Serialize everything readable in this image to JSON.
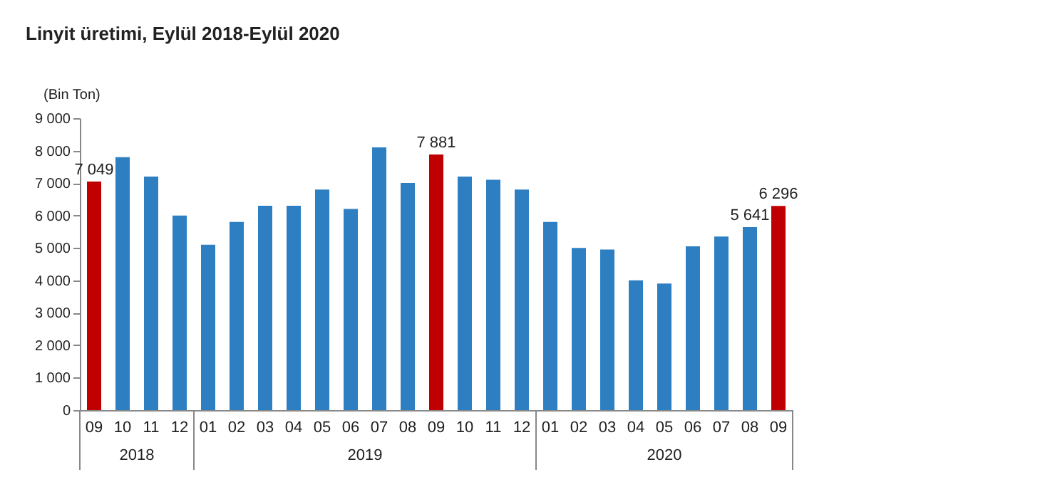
{
  "chart_data": {
    "type": "bar",
    "title": "Linyit üretimi, Eylül 2018-Eylül 2020",
    "ylabel": "(Bin Ton)",
    "categories": [
      "09",
      "10",
      "11",
      "12",
      "01",
      "02",
      "03",
      "04",
      "05",
      "06",
      "07",
      "08",
      "09",
      "10",
      "11",
      "12",
      "01",
      "02",
      "03",
      "04",
      "05",
      "06",
      "07",
      "08",
      "09"
    ],
    "values": [
      7049,
      7800,
      7200,
      6000,
      5100,
      5800,
      6300,
      6300,
      6800,
      6200,
      8100,
      7000,
      7881,
      7200,
      7100,
      6800,
      5800,
      5000,
      4950,
      4000,
      3900,
      5050,
      5350,
      5641,
      6296
    ],
    "colors": [
      "#c00000",
      "#2e7fc1",
      "#2e7fc1",
      "#2e7fc1",
      "#2e7fc1",
      "#2e7fc1",
      "#2e7fc1",
      "#2e7fc1",
      "#2e7fc1",
      "#2e7fc1",
      "#2e7fc1",
      "#2e7fc1",
      "#c00000",
      "#2e7fc1",
      "#2e7fc1",
      "#2e7fc1",
      "#2e7fc1",
      "#2e7fc1",
      "#2e7fc1",
      "#2e7fc1",
      "#2e7fc1",
      "#2e7fc1",
      "#2e7fc1",
      "#2e7fc1",
      "#c00000"
    ],
    "value_labels": [
      "7 049",
      null,
      null,
      null,
      null,
      null,
      null,
      null,
      null,
      null,
      null,
      null,
      "7 881",
      null,
      null,
      null,
      null,
      null,
      null,
      null,
      null,
      null,
      null,
      "5 641",
      "6 296"
    ],
    "annotations": [
      "2018",
      "2019",
      "2020"
    ],
    "ylim": [
      0,
      9000
    ],
    "yticks": [
      {
        "value": 0,
        "label": "0"
      },
      {
        "value": 1000,
        "label": "1 000"
      },
      {
        "value": 2000,
        "label": "2 000"
      },
      {
        "value": 3000,
        "label": "3 000"
      },
      {
        "value": 4000,
        "label": "4 000"
      },
      {
        "value": 5000,
        "label": "5 000"
      },
      {
        "value": 6000,
        "label": "6 000"
      },
      {
        "value": 7000,
        "label": "7 000"
      },
      {
        "value": 8000,
        "label": "8 000"
      },
      {
        "value": 9000,
        "label": "9 000"
      }
    ],
    "grid": false
  }
}
